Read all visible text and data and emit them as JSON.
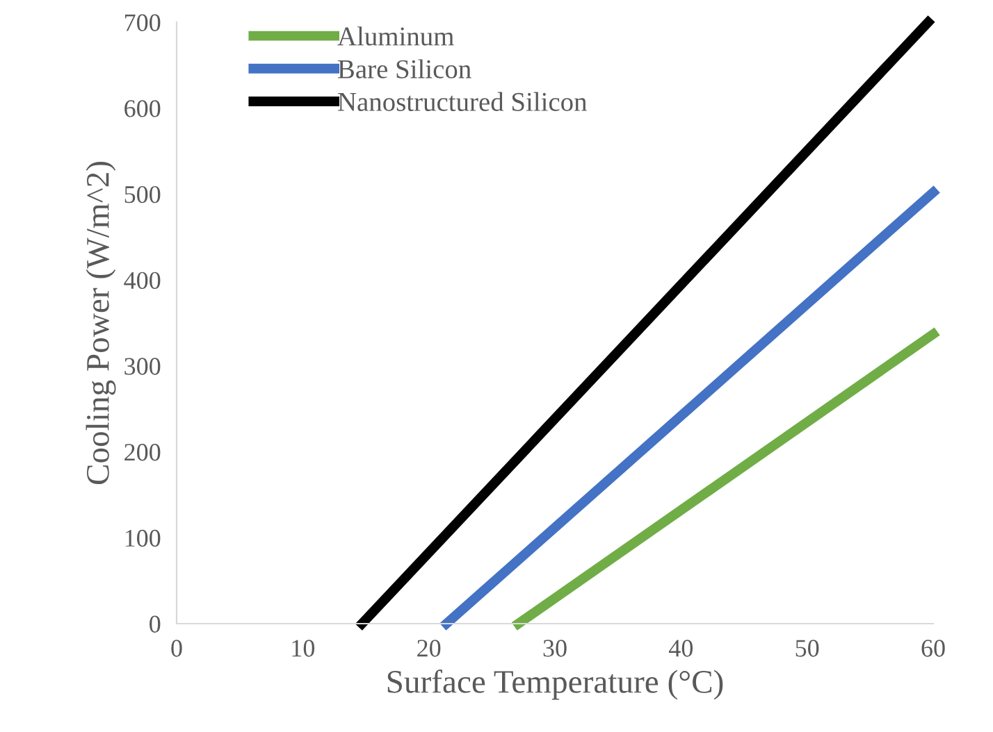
{
  "chart_data": {
    "type": "line",
    "xlabel": "Surface Temperature (°C)",
    "ylabel": "Cooling Power (W/m^2)",
    "xlim": [
      0,
      60
    ],
    "ylim": [
      0,
      700
    ],
    "xticks": [
      0,
      10,
      20,
      30,
      40,
      50,
      60
    ],
    "yticks": [
      0,
      100,
      200,
      300,
      400,
      500,
      600,
      700
    ],
    "grid": false,
    "legend": "top left",
    "marker": "none",
    "line_style": "solid",
    "series": [
      {
        "name": "Aluminum",
        "color": "#70ad47",
        "x": [
          27.1,
          60
        ],
        "values": [
          0,
          337
        ]
      },
      {
        "name": "Bare Silicon",
        "color": "#4472c4",
        "x": [
          21.4,
          60
        ],
        "values": [
          0,
          502
        ]
      },
      {
        "name": "Nanostructured Silicon",
        "color": "#000000",
        "x": [
          14.7,
          59.6
        ],
        "values": [
          0,
          700
        ]
      }
    ]
  }
}
